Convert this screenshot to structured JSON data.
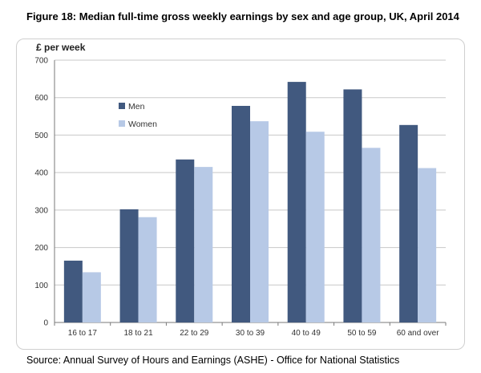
{
  "figure_title": "Figure 18: Median full-time gross weekly earnings by sex and age group, UK, April 2014",
  "source": "Source: Annual Survey of Hours and Earnings (ASHE) - Office for National Statistics",
  "colors": {
    "men": "#41597f",
    "women": "#b7c9e6",
    "grid": "#c8c8c8",
    "axis": "#7a7a7a"
  },
  "chart_data": {
    "type": "bar",
    "ylabel": "£ per week",
    "xlabel": "",
    "ylim": [
      0,
      700
    ],
    "yticks": [
      0,
      100,
      200,
      300,
      400,
      500,
      600,
      700
    ],
    "grid": true,
    "legend_position": "top-left",
    "categories": [
      "16 to 17",
      "18 to 21",
      "22 to 29",
      "30 to 39",
      "40 to 49",
      "50 to 59",
      "60 and over"
    ],
    "series": [
      {
        "name": "Men",
        "values": [
          165,
          302,
          435,
          578,
          642,
          622,
          527
        ]
      },
      {
        "name": "Women",
        "values": [
          134,
          281,
          415,
          537,
          509,
          466,
          412
        ]
      }
    ]
  }
}
